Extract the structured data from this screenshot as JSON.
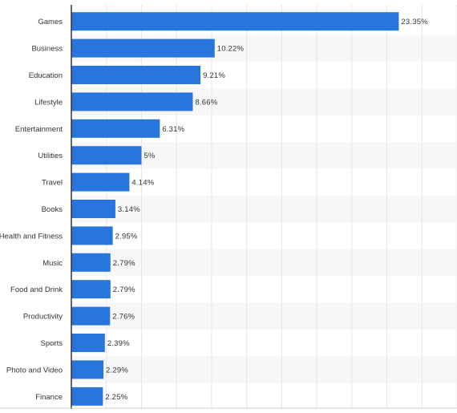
{
  "chart_data": {
    "type": "bar",
    "orientation": "horizontal",
    "categories": [
      "Games",
      "Business",
      "Education",
      "Lifestyle",
      "Entertainment",
      "Utilities",
      "Travel",
      "Books",
      "Health and Fitness",
      "Music",
      "Food and Drink",
      "Productivity",
      "Sports",
      "Photo and Video",
      "Finance"
    ],
    "values": [
      23.35,
      10.22,
      9.21,
      8.66,
      6.31,
      5,
      4.14,
      3.14,
      2.95,
      2.79,
      2.79,
      2.76,
      2.39,
      2.29,
      2.25
    ],
    "value_labels": [
      "23.35%",
      "10.22%",
      "9.21%",
      "8.66%",
      "6.31%",
      "5%",
      "4.14%",
      "3.14%",
      "2.95%",
      "2.79%",
      "2.79%",
      "2.76%",
      "2.39%",
      "2.29%",
      "2.25%"
    ],
    "title": "",
    "xlabel": "",
    "ylabel": "",
    "xlim": [
      0,
      27.5
    ],
    "grid": "vertical",
    "legend": "none",
    "bar_color": "#2876dd",
    "band_color": "#f7f7f7",
    "grid_color": "#e6e6e6",
    "axis_color": "#333333"
  }
}
